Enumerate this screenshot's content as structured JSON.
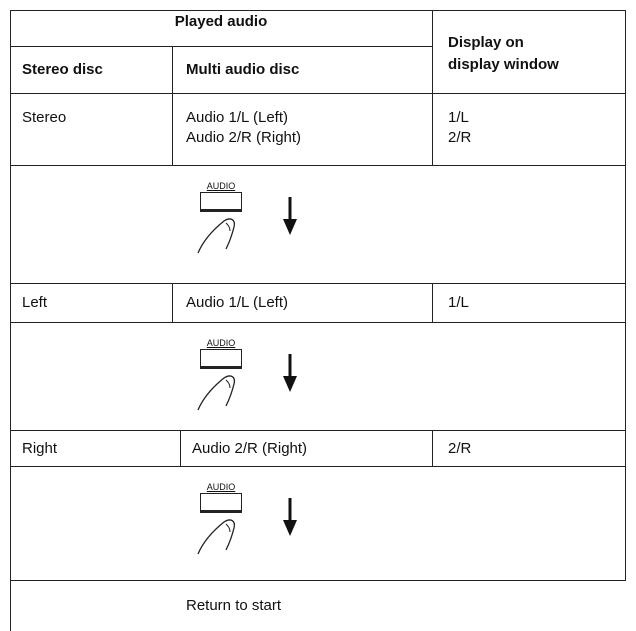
{
  "table": {
    "header": {
      "played_audio": "Played audio",
      "stereo_disc": "Stereo disc",
      "multi_audio_disc": "Multi audio disc",
      "display": [
        "Display on",
        "display window"
      ]
    },
    "rows": [
      {
        "stereo": "Stereo",
        "multi": [
          "Audio 1/L (Left)",
          "Audio 2/R (Right)"
        ],
        "display": [
          "1/L",
          "2/R"
        ]
      },
      {
        "stereo": "Left",
        "multi": [
          "Audio 1/L (Left)"
        ],
        "display": [
          "1/L"
        ]
      },
      {
        "stereo": "Right",
        "multi": [
          "Audio 2/R (Right)"
        ],
        "display": [
          "2/R"
        ]
      }
    ],
    "button_labels": [
      "AUDIO",
      "AUDIO",
      "AUDIO"
    ],
    "footer": "Return to start"
  }
}
